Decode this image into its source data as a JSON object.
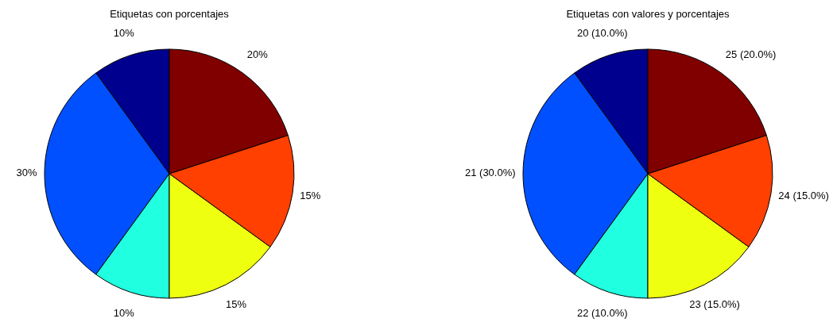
{
  "chart_data": [
    {
      "type": "pie",
      "title": "Etiquetas con porcentajes",
      "categories": [
        null,
        null,
        null,
        null,
        null,
        null
      ],
      "values": [
        10,
        30,
        10,
        15,
        15,
        20
      ],
      "colors": [
        "#00008f",
        "#0050ff",
        "#20ffdf",
        "#efff10",
        "#ff4000",
        "#800000"
      ],
      "value_labels": [
        "10%",
        "30%",
        "10%",
        "15%",
        "15%",
        "20%"
      ]
    },
    {
      "type": "pie",
      "title": "Etiquetas con valores y porcentajes",
      "categories": [
        null,
        null,
        null,
        null,
        null,
        null
      ],
      "values": [
        10,
        30,
        10,
        15,
        15,
        20
      ],
      "colors": [
        "#00008f",
        "#0050ff",
        "#20ffdf",
        "#efff10",
        "#ff4000",
        "#800000"
      ],
      "value_labels": [
        "20 (10.0%)",
        "21 (30.0%)",
        "22 (10.0%)",
        "23 (15.0%)",
        "24 (15.0%)",
        "25 (20.0%)"
      ]
    }
  ]
}
